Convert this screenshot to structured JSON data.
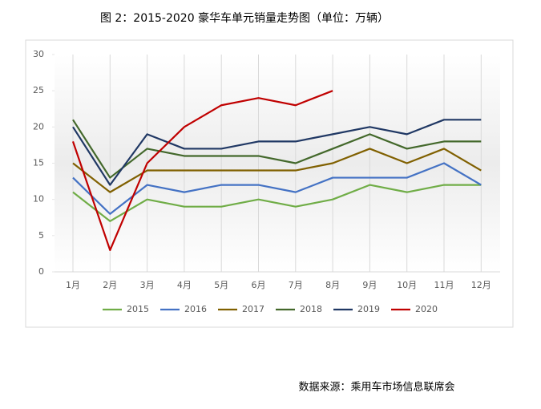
{
  "chart_data": {
    "type": "line",
    "title": "图 2：2015-2020 豪华车单元销量走势图（单位：万辆）",
    "categories": [
      "1月",
      "2月",
      "3月",
      "4月",
      "5月",
      "6月",
      "7月",
      "8月",
      "9月",
      "10月",
      "11月",
      "12月"
    ],
    "series": [
      {
        "name": "2015",
        "color": "#70ad47",
        "values": [
          11,
          7,
          10,
          9,
          9,
          10,
          9,
          10,
          12,
          11,
          12,
          12
        ]
      },
      {
        "name": "2016",
        "color": "#4472c4",
        "values": [
          13,
          8,
          12,
          11,
          12,
          12,
          11,
          13,
          13,
          13,
          15,
          12
        ]
      },
      {
        "name": "2017",
        "color": "#806000",
        "values": [
          15,
          11,
          14,
          14,
          14,
          14,
          14,
          15,
          17,
          15,
          17,
          14
        ]
      },
      {
        "name": "2018",
        "color": "#43682b",
        "values": [
          21,
          13,
          17,
          16,
          16,
          16,
          15,
          17,
          19,
          17,
          18,
          18
        ]
      },
      {
        "name": "2019",
        "color": "#203864",
        "values": [
          20,
          12,
          19,
          17,
          17,
          18,
          18,
          19,
          20,
          19,
          21,
          21
        ]
      },
      {
        "name": "2020",
        "color": "#c00000",
        "values": [
          18,
          3,
          15,
          20,
          23,
          24,
          23,
          25,
          null,
          null,
          null,
          null
        ]
      }
    ],
    "ylim": [
      0,
      30
    ],
    "yticks": [
      0,
      5,
      10,
      15,
      20,
      25,
      30
    ],
    "legend": "bottom",
    "source": "数据来源：乘用车市场信息联席会"
  }
}
